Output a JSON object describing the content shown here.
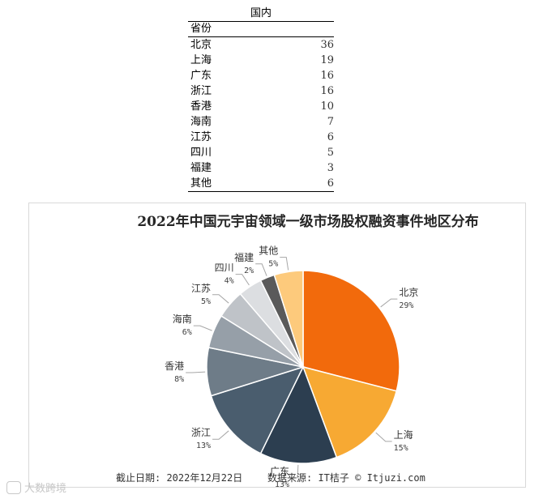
{
  "table": {
    "title": "国内",
    "header": "省份",
    "rows": [
      {
        "name": "北京",
        "value": 36
      },
      {
        "name": "上海",
        "value": 19
      },
      {
        "name": "广东",
        "value": 16
      },
      {
        "name": "浙江",
        "value": 16
      },
      {
        "name": "香港",
        "value": 10
      },
      {
        "name": "海南",
        "value": 7
      },
      {
        "name": "江苏",
        "value": 6
      },
      {
        "name": "四川",
        "value": 5
      },
      {
        "name": "福建",
        "value": 3
      },
      {
        "name": "其他",
        "value": 6
      }
    ]
  },
  "chart_data": {
    "type": "pie",
    "title": "2022年中国元宇宙领域一级市场股权融资事件地区分布",
    "slices": [
      {
        "label": "北京",
        "value": 36,
        "pct": "29%",
        "color": "#f26a0c"
      },
      {
        "label": "上海",
        "value": 19,
        "pct": "15%",
        "color": "#f7a933"
      },
      {
        "label": "广东",
        "value": 16,
        "pct": "13%",
        "color": "#2c3e50"
      },
      {
        "label": "浙江",
        "value": 16,
        "pct": "13%",
        "color": "#4a5d6e"
      },
      {
        "label": "香港",
        "value": 10,
        "pct": "8%",
        "color": "#6e7c88"
      },
      {
        "label": "海南",
        "value": 7,
        "pct": "6%",
        "color": "#969fa8"
      },
      {
        "label": "江苏",
        "value": 6,
        "pct": "5%",
        "color": "#bfc3c8"
      },
      {
        "label": "四川",
        "value": 5,
        "pct": "4%",
        "color": "#dcdee1"
      },
      {
        "label": "福建",
        "value": 3,
        "pct": "2%",
        "color": "#5a5a5a"
      },
      {
        "label": "其他",
        "value": 6,
        "pct": "5%",
        "color": "#fdca7c"
      }
    ]
  },
  "footer": {
    "date": "截止日期: 2022年12月22日",
    "source": "数据来源: IT桔子 © Itjuzi.com"
  },
  "watermark": {
    "text": "大数跨境"
  }
}
